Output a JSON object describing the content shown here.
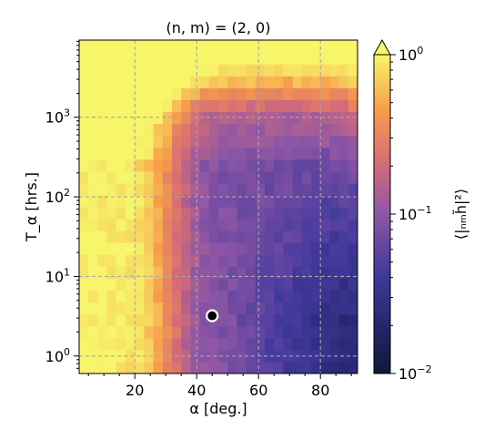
{
  "chart_data": {
    "type": "heatmap",
    "title": "(n, m) = (2, 0)",
    "xlabel": "α [deg.]",
    "ylabel": "T_α [hrs.]",
    "colorbar_label": "⟨|ₙₘh̃|²⟩",
    "x_range": [
      2,
      92
    ],
    "y_range_log10": [
      -0.22,
      3.97
    ],
    "y_scale": "log",
    "x_ticks": [
      {
        "v": 20,
        "label": "20"
      },
      {
        "v": 40,
        "label": "40"
      },
      {
        "v": 60,
        "label": "60"
      },
      {
        "v": 80,
        "label": "80"
      }
    ],
    "y_ticks": [
      {
        "exp": 0,
        "base": "10",
        "sup": "0"
      },
      {
        "exp": 1,
        "base": "10",
        "sup": "1"
      },
      {
        "exp": 2,
        "base": "10",
        "sup": "2"
      },
      {
        "exp": 3,
        "base": "10",
        "sup": "3"
      }
    ],
    "colorbar_ticks": [
      {
        "exp": 0,
        "base": "10",
        "sup": "0"
      },
      {
        "exp": -1,
        "base": "10",
        "sup": "−1"
      },
      {
        "exp": -2,
        "base": "10",
        "sup": "−2"
      }
    ],
    "color_range_log10": [
      -2,
      0
    ],
    "colormap": "plasma-like (dark navy → purple → orange → yellow)",
    "grid": true,
    "grid_style": "dashed gray",
    "colorbar_extend": "max",
    "grid_cols": 30,
    "grid_rows": 28,
    "marker": {
      "x": 45,
      "y": 3.2,
      "style": "black dot, white edge"
    }
  }
}
